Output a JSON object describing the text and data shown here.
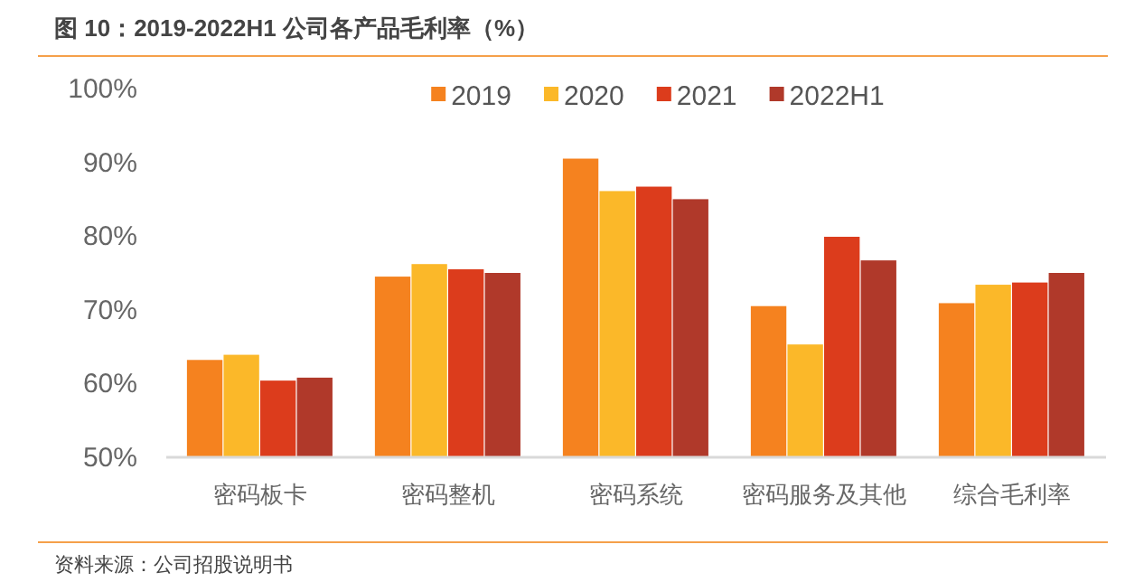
{
  "chart_data": {
    "type": "bar",
    "title": "图 10：2019-2022H1 公司各产品毛利率（%）",
    "categories": [
      "密码板卡",
      "密码整机",
      "密码系统",
      "密码服务及其他",
      "综合毛利率"
    ],
    "series": [
      {
        "name": "2019",
        "color": "#f5821f",
        "values": [
          63.2,
          74.5,
          90.5,
          70.5,
          70.9
        ]
      },
      {
        "name": "2020",
        "color": "#fbb829",
        "values": [
          63.9,
          76.2,
          86.1,
          65.3,
          73.4
        ]
      },
      {
        "name": "2021",
        "color": "#dc3c1c",
        "values": [
          60.4,
          75.5,
          86.7,
          79.9,
          73.7
        ]
      },
      {
        "name": "2022H1",
        "color": "#b0392a",
        "values": [
          60.8,
          75.0,
          85.0,
          76.7,
          75.0
        ]
      }
    ],
    "ylim": [
      50,
      100
    ],
    "yticks": [
      {
        "value": 50,
        "label": "50%"
      },
      {
        "value": 60,
        "label": "60%"
      },
      {
        "value": 70,
        "label": "70%"
      },
      {
        "value": 80,
        "label": "80%"
      },
      {
        "value": 90,
        "label": "90%"
      },
      {
        "value": 100,
        "label": "100%"
      }
    ],
    "legend": "top",
    "grid": false,
    "annotations": [
      "资料来源：公司招股说明书"
    ]
  }
}
